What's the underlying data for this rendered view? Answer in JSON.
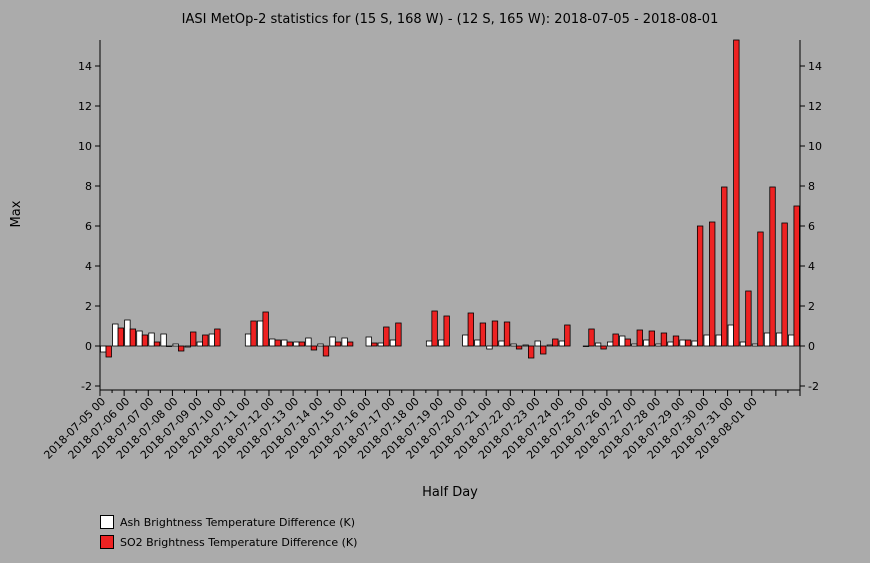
{
  "chart_data": {
    "type": "bar",
    "title": "IASI MetOp-2 statistics for (15 S, 168 W) - (12 S, 165 W): 2018-07-05 - 2018-08-01",
    "xlabel": "Half Day",
    "ylabel": "Max",
    "ylim": [
      -2.2,
      15.3
    ],
    "yticks": [
      -2,
      0,
      2,
      4,
      6,
      8,
      10,
      12,
      14
    ],
    "grid": false,
    "legend_position": "bottom-left",
    "tick_labels": [
      "2018-07-05 00",
      "2018-07-06 00",
      "2018-07-07 00",
      "2018-07-08 00",
      "2018-07-09 00",
      "2018-07-10 00",
      "2018-07-11 00",
      "2018-07-12 00",
      "2018-07-13 00",
      "2018-07-14 00",
      "2018-07-15 00",
      "2018-07-16 00",
      "2018-07-17 00",
      "2018-07-18 00",
      "2018-07-19 00",
      "2018-07-20 00",
      "2018-07-21 00",
      "2018-07-22 00",
      "2018-07-23 00",
      "2018-07-24 00",
      "2018-07-25 00",
      "2018-07-26 00",
      "2018-07-27 00",
      "2018-07-28 00",
      "2018-07-29 00",
      "2018-07-30 00",
      "2018-07-31 00",
      "2018-08-01 00"
    ],
    "series": [
      {
        "name": "Ash Brightness Temperature Difference (K)",
        "color": "#ffffff",
        "values": [
          -0.3,
          1.1,
          1.3,
          0.75,
          0.65,
          0.6,
          0.1,
          -0.05,
          0.2,
          0.6,
          null,
          null,
          0.6,
          1.25,
          0.35,
          0.3,
          0.2,
          0.4,
          0.1,
          0.45,
          0.4,
          null,
          0.45,
          0.15,
          0.3,
          null,
          null,
          0.25,
          0.3,
          null,
          0.55,
          0.3,
          -0.15,
          0.25,
          0.1,
          0.05,
          0.25,
          0.05,
          0.25,
          null,
          0.0,
          0.15,
          0.2,
          0.5,
          0.1,
          0.3,
          0.1,
          0.2,
          0.3,
          0.25,
          0.55,
          0.55,
          1.05,
          0.2,
          0.1,
          0.65,
          0.65,
          0.55
        ]
      },
      {
        "name": "SO2 Brightness Temperature Difference (K)",
        "color": "#ee2222",
        "values": [
          -0.55,
          0.9,
          0.85,
          0.55,
          0.2,
          0.0,
          -0.25,
          0.7,
          0.55,
          0.85,
          null,
          null,
          1.25,
          1.7,
          0.3,
          0.2,
          0.2,
          -0.2,
          -0.5,
          0.2,
          0.2,
          null,
          0.15,
          0.95,
          1.15,
          null,
          null,
          1.75,
          1.5,
          null,
          1.65,
          1.15,
          1.25,
          1.2,
          -0.15,
          -0.6,
          -0.4,
          0.35,
          1.05,
          null,
          0.85,
          -0.15,
          0.6,
          0.35,
          0.8,
          0.75,
          0.65,
          0.5,
          0.3,
          6.0,
          6.2,
          7.95,
          15.3,
          2.75,
          5.7,
          7.95,
          6.15,
          7.0
        ]
      }
    ]
  }
}
